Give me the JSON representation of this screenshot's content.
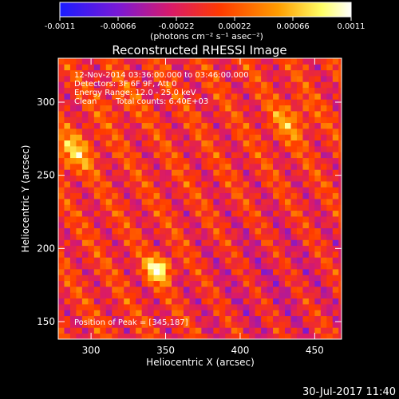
{
  "chart_data": {
    "type": "heatmap",
    "title": "Reconstructed RHESSI Image",
    "xlabel": "Heliocentric X (arcsec)",
    "ylabel": "Heliocentric Y (arcsec)",
    "xlim": [
      278,
      468
    ],
    "ylim": [
      138,
      330
    ],
    "xticks": [
      300,
      350,
      400,
      450
    ],
    "yticks": [
      150,
      200,
      250,
      300
    ],
    "colorbar": {
      "ticks": [
        "-0.0011",
        "-0.00066",
        "-0.00022",
        "0.00022",
        "0.00066",
        "0.0011"
      ],
      "tick_values": [
        -0.0011,
        -0.00066,
        -0.00022,
        0.00022,
        0.00066,
        0.0011
      ],
      "range": [
        -0.0011,
        0.0011
      ],
      "units": "(photons cm⁻² s⁻¹ asec⁻²)",
      "colors": [
        "#1a1cff",
        "#7a19d6",
        "#d91a6a",
        "#ff3a00",
        "#ff9d00",
        "#ffff66",
        "#ffffff"
      ]
    },
    "annotations": {
      "time_range": "12-Nov-2014 03:36:00.000 to 03:46:00.000",
      "detectors": "Detectors: 3F 6F 9F, Att 0",
      "energy": "Energy Range: 12.0 - 25.0 keV",
      "clean": "Clean",
      "counts": "Total counts: 6.40E+03",
      "peak": "Position of Peak = [345,187]"
    },
    "sources": [
      {
        "x": 345,
        "y": 186,
        "peak": 0.0011
      },
      {
        "x": 288,
        "y": 266,
        "peak": 0.00062
      },
      {
        "x": 433,
        "y": 287,
        "peak": 0.00045
      },
      {
        "x": 318,
        "y": 300,
        "peak": 0.00018
      }
    ],
    "peak_position": [
      345,
      187
    ]
  },
  "footer": {
    "timestamp": "30-Jul-2017 11:40"
  }
}
